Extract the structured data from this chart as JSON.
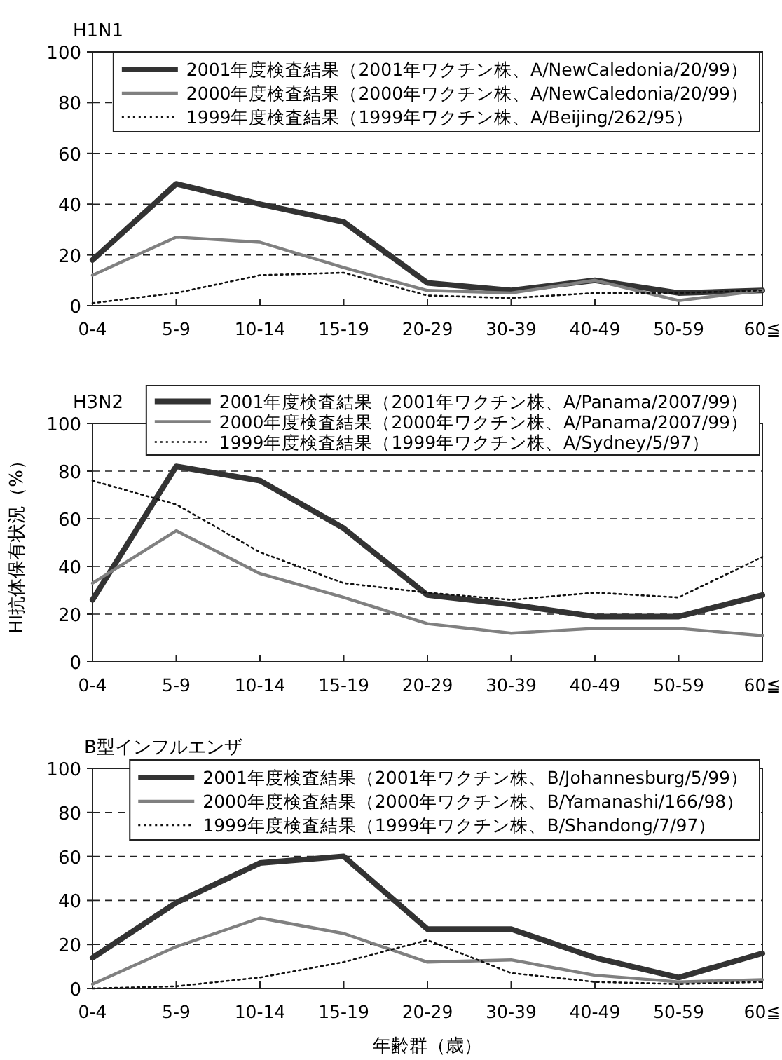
{
  "chart_data": [
    {
      "type": "line",
      "title": "H1N1",
      "categories": [
        "0-4",
        "5-9",
        "10-14",
        "15-19",
        "20-29",
        "30-39",
        "40-49",
        "50-59",
        "60≦"
      ],
      "ylim": [
        0,
        100
      ],
      "yticks": [
        0,
        20,
        40,
        60,
        80,
        100
      ],
      "grid": "y",
      "legend": "top",
      "series": [
        {
          "name": "2001年度検査結果（2001年ワクチン株、A/NewCaledonia/20/99）",
          "color": "#333333",
          "line_style": "solid",
          "values": [
            18,
            48,
            40,
            33,
            9,
            6,
            10,
            5,
            6
          ]
        },
        {
          "name": "2000年度検査結果（2000年ワクチン株、A/NewCaledonia/20/99）",
          "color": "#808080",
          "line_style": "solid",
          "values": [
            12,
            27,
            25,
            15,
            6,
            5,
            10,
            2,
            6
          ]
        },
        {
          "name": "1999年度検査結果（1999年ワクチン株、A/Beijing/262/95）",
          "color": "#111111",
          "line_style": "dotted",
          "values": [
            1,
            5,
            12,
            13,
            4,
            3,
            5,
            5,
            6
          ]
        }
      ]
    },
    {
      "type": "line",
      "title": "H3N2",
      "ylabel": "HI抗体保有状況（%）",
      "categories": [
        "0-4",
        "5-9",
        "10-14",
        "15-19",
        "20-29",
        "30-39",
        "40-49",
        "50-59",
        "60≦"
      ],
      "ylim": [
        0,
        100
      ],
      "yticks": [
        0,
        20,
        40,
        60,
        80,
        100
      ],
      "grid": "y",
      "legend": "top",
      "series": [
        {
          "name": "2001年度検査結果（2001年ワクチン株、A/Panama/2007/99）",
          "color": "#333333",
          "line_style": "solid",
          "values": [
            26,
            82,
            76,
            56,
            28,
            24,
            19,
            19,
            28
          ]
        },
        {
          "name": "2000年度検査結果（2000年ワクチン株、A/Panama/2007/99）",
          "color": "#808080",
          "line_style": "solid",
          "values": [
            33,
            55,
            37,
            27,
            16,
            12,
            14,
            14,
            11
          ]
        },
        {
          "name": "1999年度検査結果（1999年ワクチン株、A/Sydney/5/97）",
          "color": "#111111",
          "line_style": "dotted",
          "values": [
            76,
            66,
            46,
            33,
            29,
            26,
            29,
            27,
            44
          ]
        }
      ]
    },
    {
      "type": "line",
      "title": "B型インフルエンザ",
      "xlabel": "年齢群（歳）",
      "categories": [
        "0-4",
        "5-9",
        "10-14",
        "15-19",
        "20-29",
        "30-39",
        "40-49",
        "50-59",
        "60≦"
      ],
      "ylim": [
        0,
        100
      ],
      "yticks": [
        0,
        20,
        40,
        60,
        80,
        100
      ],
      "grid": "y",
      "legend": "top",
      "series": [
        {
          "name": "2001年度検査結果（2001年ワクチン株、B/Johannesburg/5/99）",
          "color": "#333333",
          "line_style": "solid",
          "values": [
            14,
            39,
            57,
            60,
            27,
            27,
            14,
            5,
            16
          ]
        },
        {
          "name": "2000年度検査結果（2000年ワクチン株、B/Yamanashi/166/98）",
          "color": "#808080",
          "line_style": "solid",
          "values": [
            2,
            19,
            32,
            25,
            12,
            13,
            6,
            3,
            4
          ]
        },
        {
          "name": "1999年度検査結果（1999年ワクチン株、B/Shandong/7/97）",
          "color": "#111111",
          "line_style": "dotted",
          "values": [
            0,
            1,
            5,
            12,
            22,
            7,
            3,
            2,
            3
          ]
        }
      ]
    }
  ]
}
